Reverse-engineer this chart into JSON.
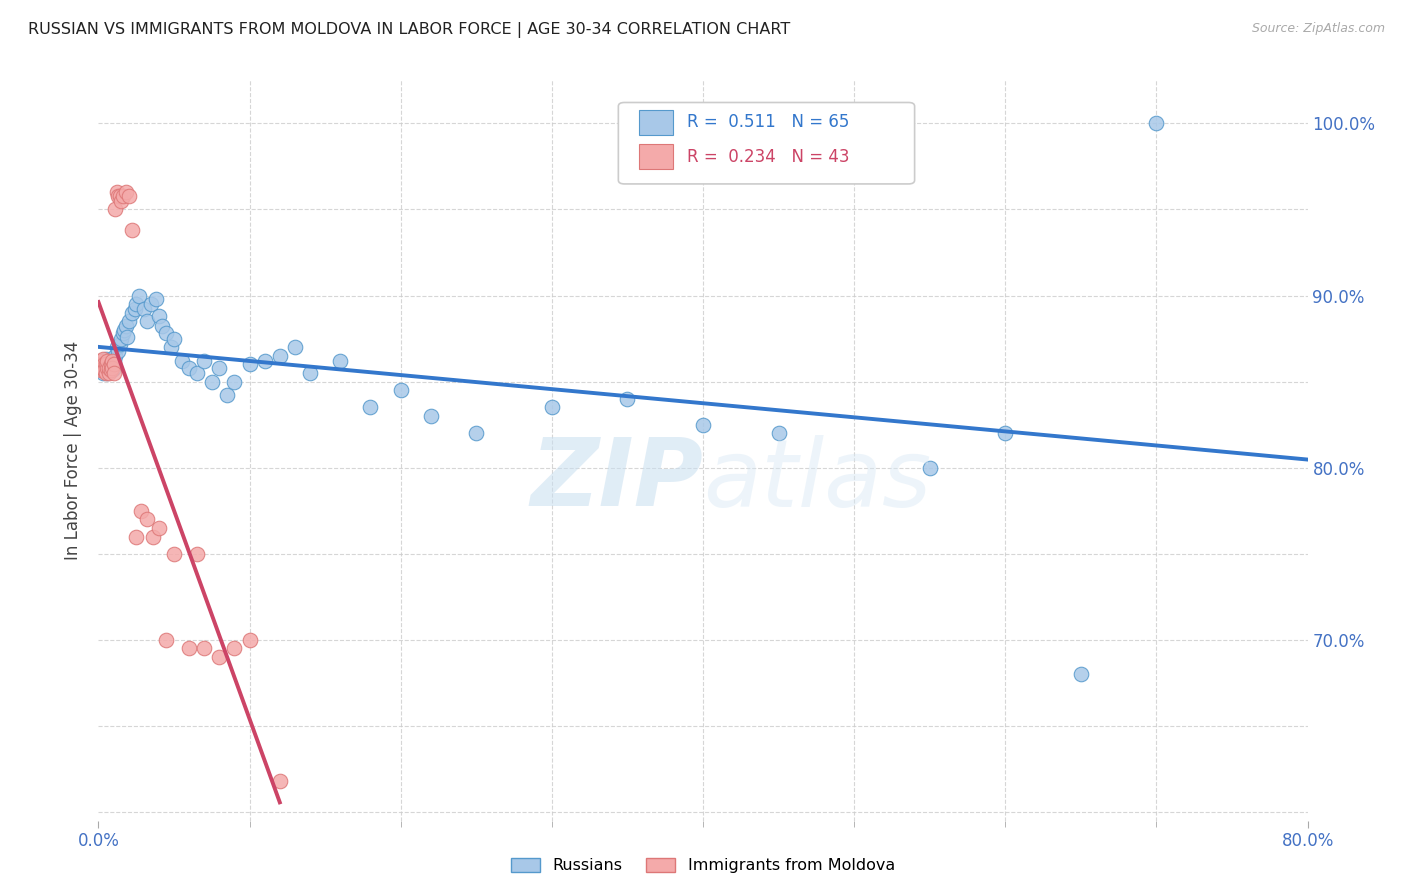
{
  "title": "RUSSIAN VS IMMIGRANTS FROM MOLDOVA IN LABOR FORCE | AGE 30-34 CORRELATION CHART",
  "source": "Source: ZipAtlas.com",
  "ylabel": "In Labor Force | Age 30-34",
  "watermark_zip": "ZIP",
  "watermark_atlas": "atlas",
  "legend_blue_r": "0.511",
  "legend_blue_n": "65",
  "legend_pink_r": "0.234",
  "legend_pink_n": "43",
  "legend_label_blue": "Russians",
  "legend_label_pink": "Immigrants from Moldova",
  "blue_color": "#a8c8e8",
  "pink_color": "#f4aaaa",
  "blue_edge_color": "#5599cc",
  "pink_edge_color": "#dd7777",
  "blue_line_color": "#3377cc",
  "pink_line_color": "#cc4466",
  "blue_x": [
    0.001,
    0.002,
    0.003,
    0.003,
    0.004,
    0.004,
    0.005,
    0.005,
    0.006,
    0.007,
    0.007,
    0.008,
    0.009,
    0.009,
    0.01,
    0.01,
    0.011,
    0.012,
    0.013,
    0.014,
    0.015,
    0.016,
    0.017,
    0.018,
    0.019,
    0.02,
    0.022,
    0.024,
    0.025,
    0.027,
    0.03,
    0.032,
    0.035,
    0.038,
    0.04,
    0.042,
    0.045,
    0.048,
    0.05,
    0.055,
    0.06,
    0.065,
    0.07,
    0.075,
    0.08,
    0.085,
    0.09,
    0.1,
    0.11,
    0.12,
    0.13,
    0.14,
    0.16,
    0.18,
    0.2,
    0.22,
    0.25,
    0.3,
    0.35,
    0.4,
    0.45,
    0.55,
    0.6,
    0.65,
    0.7
  ],
  "blue_y": [
    0.862,
    0.858,
    0.86,
    0.855,
    0.857,
    0.858,
    0.86,
    0.863,
    0.855,
    0.859,
    0.858,
    0.862,
    0.86,
    0.857,
    0.862,
    0.858,
    0.865,
    0.87,
    0.868,
    0.872,
    0.875,
    0.878,
    0.88,
    0.882,
    0.876,
    0.885,
    0.89,
    0.892,
    0.895,
    0.9,
    0.892,
    0.885,
    0.895,
    0.898,
    0.888,
    0.882,
    0.878,
    0.87,
    0.875,
    0.862,
    0.858,
    0.855,
    0.862,
    0.85,
    0.858,
    0.842,
    0.85,
    0.86,
    0.862,
    0.865,
    0.87,
    0.855,
    0.862,
    0.835,
    0.845,
    0.83,
    0.82,
    0.835,
    0.84,
    0.825,
    0.82,
    0.8,
    0.82,
    0.68,
    1.0
  ],
  "pink_x": [
    0.001,
    0.001,
    0.002,
    0.002,
    0.003,
    0.003,
    0.004,
    0.004,
    0.005,
    0.005,
    0.006,
    0.006,
    0.007,
    0.007,
    0.008,
    0.008,
    0.009,
    0.009,
    0.01,
    0.01,
    0.011,
    0.012,
    0.013,
    0.014,
    0.015,
    0.016,
    0.018,
    0.02,
    0.022,
    0.025,
    0.028,
    0.032,
    0.036,
    0.04,
    0.045,
    0.05,
    0.06,
    0.065,
    0.07,
    0.08,
    0.09,
    0.1,
    0.12
  ],
  "pink_y": [
    0.858,
    0.862,
    0.86,
    0.857,
    0.863,
    0.858,
    0.86,
    0.857,
    0.855,
    0.86,
    0.858,
    0.862,
    0.855,
    0.858,
    0.857,
    0.86,
    0.862,
    0.858,
    0.86,
    0.855,
    0.95,
    0.96,
    0.958,
    0.958,
    0.955,
    0.958,
    0.96,
    0.958,
    0.938,
    0.76,
    0.775,
    0.77,
    0.76,
    0.765,
    0.7,
    0.75,
    0.695,
    0.75,
    0.695,
    0.69,
    0.695,
    0.7,
    0.618
  ],
  "xmin": 0.0,
  "xmax": 0.8,
  "ymin": 0.595,
  "ymax": 1.025
}
